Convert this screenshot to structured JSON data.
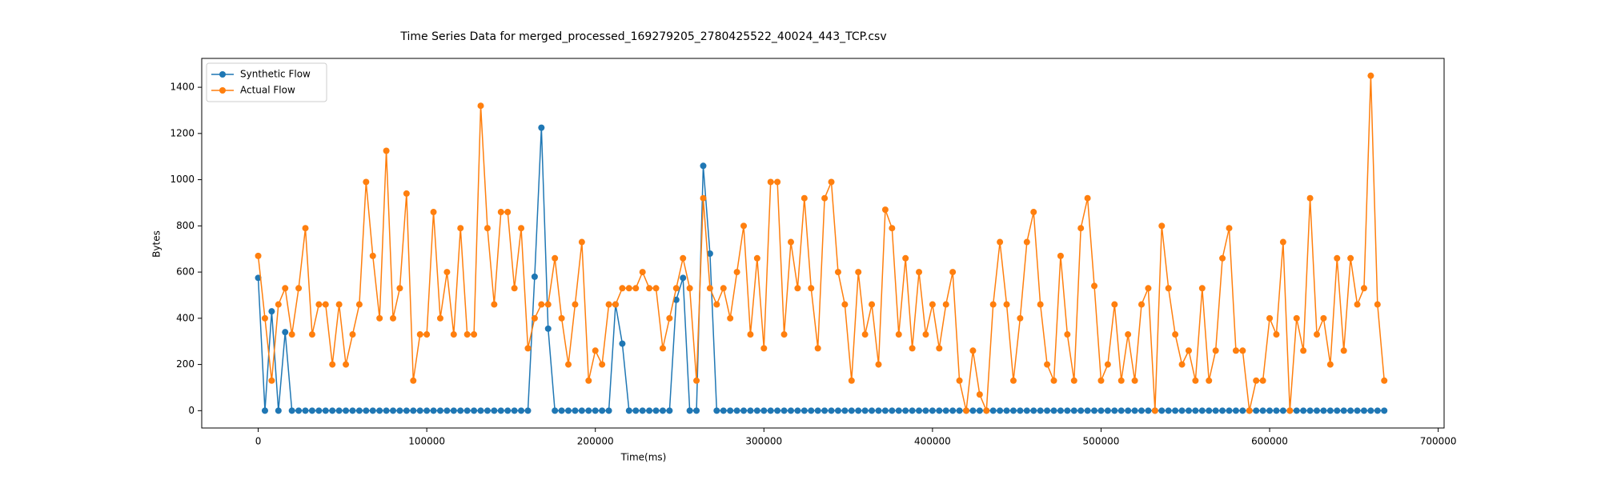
{
  "chart_data": {
    "type": "line",
    "title": "Time Series Data for merged_processed_169279205_2780425522_40024_443_TCP.csv",
    "x_label": "Time(ms)",
    "y_label": "Bytes",
    "xlim": [
      -33500,
      703500
    ],
    "ylim": [
      -75,
      1525
    ],
    "xticks": [
      0,
      100000,
      200000,
      300000,
      400000,
      500000,
      600000,
      700000
    ],
    "yticks": [
      0,
      200,
      400,
      600,
      800,
      1000,
      1200,
      1400
    ],
    "legend": "upper left",
    "x": [
      0,
      4000,
      8000,
      12000,
      16000,
      20000,
      24000,
      28000,
      32000,
      36000,
      40000,
      44000,
      48000,
      52000,
      56000,
      60000,
      64000,
      68000,
      72000,
      76000,
      80000,
      84000,
      88000,
      92000,
      96000,
      100000,
      104000,
      108000,
      112000,
      116000,
      120000,
      124000,
      128000,
      132000,
      136000,
      140000,
      144000,
      148000,
      152000,
      156000,
      160000,
      164000,
      168000,
      172000,
      176000,
      180000,
      184000,
      188000,
      192000,
      196000,
      200000,
      204000,
      208000,
      212000,
      216000,
      220000,
      224000,
      228000,
      232000,
      236000,
      240000,
      244000,
      248000,
      252000,
      256000,
      260000,
      264000,
      268000,
      272000,
      276000,
      280000,
      284000,
      288000,
      292000,
      296000,
      300000,
      304000,
      308000,
      312000,
      316000,
      320000,
      324000,
      328000,
      332000,
      336000,
      340000,
      344000,
      348000,
      352000,
      356000,
      360000,
      364000,
      368000,
      372000,
      376000,
      380000,
      384000,
      388000,
      392000,
      396000,
      400000,
      404000,
      408000,
      412000,
      416000,
      420000,
      424000,
      428000,
      432000,
      436000,
      440000,
      444000,
      448000,
      452000,
      456000,
      460000,
      464000,
      468000,
      472000,
      476000,
      480000,
      484000,
      488000,
      492000,
      496000,
      500000,
      504000,
      508000,
      512000,
      516000,
      520000,
      524000,
      528000,
      532000,
      536000,
      540000,
      544000,
      548000,
      552000,
      556000,
      560000,
      564000,
      568000,
      572000,
      576000,
      580000,
      584000,
      588000,
      592000,
      596000,
      600000,
      604000,
      608000,
      612000,
      616000,
      620000,
      624000,
      628000,
      632000,
      636000,
      640000,
      644000,
      648000,
      652000,
      656000,
      660000,
      664000,
      668000
    ],
    "series": [
      {
        "name": "Synthetic Flow",
        "color": "#1f77b4",
        "values": [
          575,
          0,
          430,
          0,
          340,
          0,
          0,
          0,
          0,
          0,
          0,
          0,
          0,
          0,
          0,
          0,
          0,
          0,
          0,
          0,
          0,
          0,
          0,
          0,
          0,
          0,
          0,
          0,
          0,
          0,
          0,
          0,
          0,
          0,
          0,
          0,
          0,
          0,
          0,
          0,
          0,
          580,
          1225,
          355,
          0,
          0,
          0,
          0,
          0,
          0,
          0,
          0,
          0,
          460,
          290,
          0,
          0,
          0,
          0,
          0,
          0,
          0,
          480,
          575,
          0,
          0,
          1060,
          680,
          0,
          0,
          0,
          0,
          0,
          0,
          0,
          0,
          0,
          0,
          0,
          0,
          0,
          0,
          0,
          0,
          0,
          0,
          0,
          0,
          0,
          0,
          0,
          0,
          0,
          0,
          0,
          0,
          0,
          0,
          0,
          0,
          0,
          0,
          0,
          0,
          0,
          0,
          0,
          0,
          0,
          0,
          0,
          0,
          0,
          0,
          0,
          0,
          0,
          0,
          0,
          0,
          0,
          0,
          0,
          0,
          0,
          0,
          0,
          0,
          0,
          0,
          0,
          0,
          0,
          0,
          0,
          0,
          0,
          0,
          0,
          0,
          0,
          0,
          0,
          0,
          0,
          0,
          0,
          0,
          0,
          0,
          0,
          0,
          0,
          0,
          0,
          0,
          0,
          0,
          0,
          0,
          0,
          0,
          0,
          0,
          0,
          0,
          0,
          0
        ]
      },
      {
        "name": "Actual Flow",
        "color": "#ff7f0e",
        "values": [
          670,
          400,
          130,
          460,
          530,
          330,
          530,
          790,
          330,
          460,
          460,
          200,
          460,
          200,
          330,
          460,
          990,
          670,
          400,
          1125,
          400,
          530,
          940,
          130,
          330,
          330,
          860,
          400,
          600,
          330,
          790,
          330,
          330,
          1320,
          790,
          460,
          860,
          860,
          530,
          790,
          270,
          400,
          460,
          460,
          660,
          400,
          200,
          460,
          730,
          130,
          260,
          200,
          460,
          460,
          530,
          530,
          530,
          600,
          530,
          530,
          270,
          400,
          530,
          660,
          530,
          130,
          920,
          530,
          460,
          530,
          400,
          600,
          800,
          330,
          660,
          270,
          990,
          990,
          330,
          730,
          530,
          920,
          530,
          270,
          920,
          990,
          600,
          460,
          130,
          600,
          330,
          460,
          200,
          870,
          790,
          330,
          660,
          270,
          600,
          330,
          460,
          270,
          460,
          600,
          130,
          0,
          260,
          70,
          0,
          460,
          730,
          460,
          130,
          400,
          730,
          860,
          460,
          200,
          130,
          670,
          330,
          130,
          790,
          920,
          540,
          130,
          200,
          460,
          130,
          330,
          130,
          460,
          530,
          0,
          800,
          530,
          330,
          200,
          260,
          130,
          530,
          130,
          260,
          660,
          790,
          260,
          260,
          0,
          130,
          130,
          400,
          330,
          730,
          0,
          400,
          260,
          920,
          330,
          400,
          200,
          660,
          260,
          660,
          460,
          530,
          1450,
          460,
          130
        ]
      }
    ]
  }
}
